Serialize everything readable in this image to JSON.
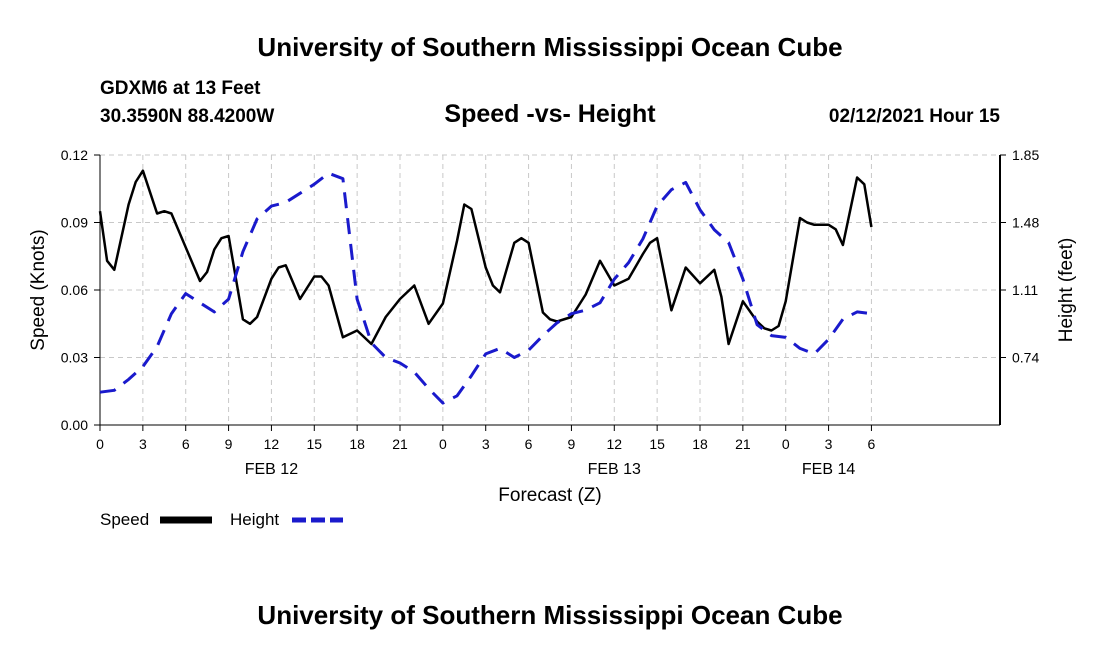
{
  "header": {
    "top_title": "University of Southern Mississippi Ocean Cube",
    "station": "GDXM6 at 13 Feet",
    "coords": "30.3590N 88.4200W",
    "subtitle": "Speed -vs- Height",
    "datetime": "02/12/2021 Hour 15"
  },
  "footer": {
    "bottom_title": "University of Southern Mississippi Ocean Cube"
  },
  "legend": {
    "speed_label": "Speed",
    "height_label": "Height"
  },
  "colors": {
    "speed": "#000000",
    "height": "#1a1acc",
    "grid": "#c8c8c8"
  },
  "chart_data": {
    "type": "line",
    "title": "Speed -vs- Height",
    "xlabel": "Forecast (Z)",
    "ylabel_left": "Speed (Knots)",
    "ylabel_right": "Height (feet)",
    "xlim": [
      0,
      63
    ],
    "ylim_left": [
      0,
      0.12
    ],
    "ylim_right": [
      0.37,
      1.85
    ],
    "left_ticks": [
      "0.00",
      "0.03",
      "0.06",
      "0.09",
      "0.12"
    ],
    "right_ticks": [
      "0.74",
      "1.11",
      "1.48",
      "1.85"
    ],
    "right_tick_values": [
      0.74,
      1.11,
      1.48,
      1.85
    ],
    "x_tick_labels": [
      "0",
      "3",
      "6",
      "9",
      "12",
      "15",
      "18",
      "21",
      "0",
      "3",
      "6",
      "9",
      "12",
      "15",
      "18",
      "21",
      "0",
      "3",
      "6"
    ],
    "x_tick_hours": [
      0,
      3,
      6,
      9,
      12,
      15,
      18,
      21,
      24,
      27,
      30,
      33,
      36,
      39,
      42,
      45,
      48,
      51,
      54
    ],
    "date_labels": [
      {
        "label": "FEB 12",
        "hour": 12
      },
      {
        "label": "FEB 13",
        "hour": 36
      },
      {
        "label": "FEB 14",
        "hour": 51
      }
    ],
    "series": [
      {
        "name": "Speed",
        "axis": "left",
        "style": "solid",
        "x": [
          0,
          0.5,
          1,
          2,
          2.5,
          3,
          4,
          4.5,
          5,
          6,
          7,
          7.5,
          8,
          8.5,
          9,
          10,
          10.5,
          11,
          12,
          12.5,
          13,
          14,
          15,
          15.5,
          16,
          17,
          18,
          19,
          20,
          21,
          22,
          23,
          24,
          25,
          25.5,
          26,
          27,
          27.5,
          28,
          29,
          29.5,
          30,
          31,
          31.5,
          32,
          33,
          34,
          35,
          36,
          37,
          38,
          38.5,
          39,
          40,
          41,
          42,
          43,
          43.5,
          44,
          45,
          46,
          46.5,
          47,
          47.5,
          48,
          49,
          49.5,
          50,
          51,
          51.5,
          52,
          53,
          53.5,
          54
        ],
        "values": [
          0.095,
          0.073,
          0.069,
          0.098,
          0.108,
          0.113,
          0.094,
          0.095,
          0.094,
          0.079,
          0.064,
          0.068,
          0.078,
          0.083,
          0.084,
          0.047,
          0.045,
          0.048,
          0.065,
          0.07,
          0.071,
          0.056,
          0.066,
          0.066,
          0.062,
          0.039,
          0.042,
          0.036,
          0.048,
          0.056,
          0.062,
          0.045,
          0.054,
          0.082,
          0.098,
          0.096,
          0.07,
          0.062,
          0.059,
          0.081,
          0.083,
          0.081,
          0.05,
          0.047,
          0.046,
          0.048,
          0.058,
          0.073,
          0.062,
          0.065,
          0.076,
          0.081,
          0.083,
          0.051,
          0.07,
          0.063,
          0.069,
          0.057,
          0.036,
          0.055,
          0.046,
          0.043,
          0.042,
          0.044,
          0.055,
          0.092,
          0.09,
          0.089,
          0.089,
          0.087,
          0.08,
          0.11,
          0.107,
          0.088
        ]
      },
      {
        "name": "Height",
        "axis": "right",
        "style": "dashed",
        "x": [
          0,
          1,
          2,
          3,
          4,
          5,
          6,
          7,
          8,
          9,
          10,
          11,
          12,
          13,
          14,
          15,
          16,
          17,
          18,
          19,
          20,
          21,
          22,
          23,
          24,
          25,
          26,
          27,
          28,
          29,
          30,
          31,
          32,
          33,
          34,
          35,
          36,
          37,
          38,
          39,
          40,
          41,
          42,
          43,
          44,
          45,
          46,
          47,
          48,
          49,
          50,
          51,
          52,
          53,
          54
        ],
        "values": [
          0.55,
          0.56,
          0.62,
          0.69,
          0.8,
          0.98,
          1.09,
          1.04,
          0.99,
          1.06,
          1.32,
          1.5,
          1.57,
          1.59,
          1.64,
          1.69,
          1.75,
          1.72,
          1.06,
          0.82,
          0.74,
          0.71,
          0.66,
          0.57,
          0.49,
          0.53,
          0.64,
          0.76,
          0.79,
          0.74,
          0.78,
          0.86,
          0.93,
          0.98,
          1.0,
          1.04,
          1.17,
          1.26,
          1.39,
          1.57,
          1.66,
          1.7,
          1.55,
          1.44,
          1.37,
          1.17,
          0.92,
          0.86,
          0.85,
          0.79,
          0.76,
          0.84,
          0.95,
          0.99,
          0.98
        ]
      }
    ]
  }
}
